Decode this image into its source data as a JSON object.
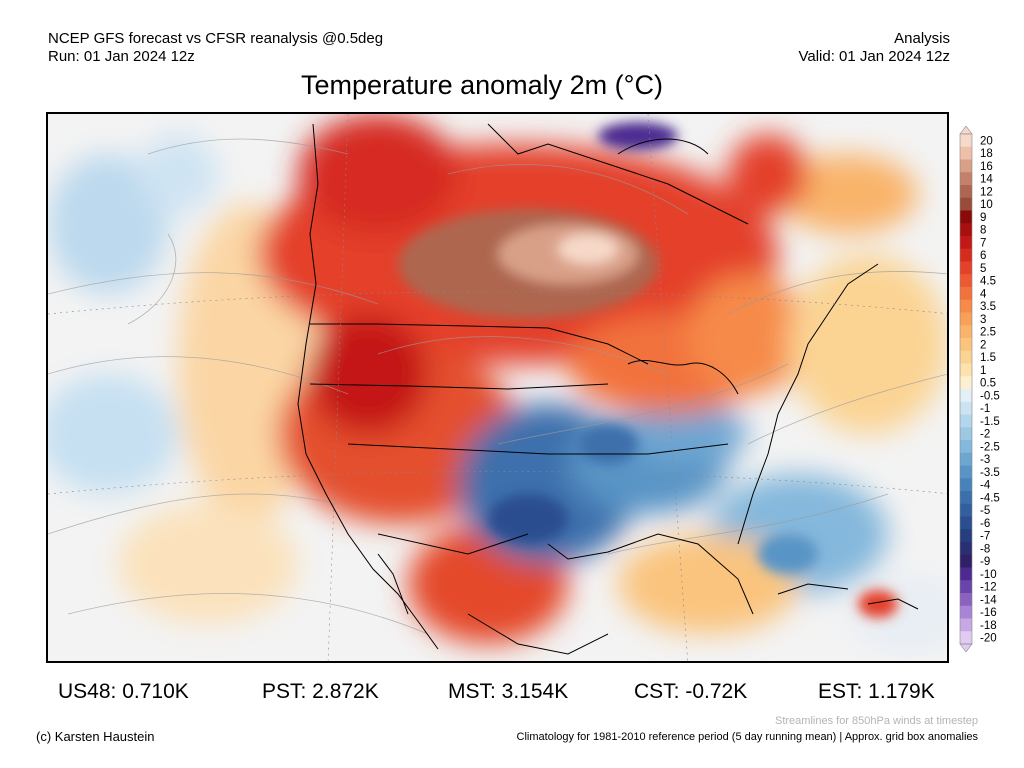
{
  "header": {
    "left_line1": "NCEP GFS forecast vs CFSR reanalysis @0.5deg",
    "left_line2": "Run: 01 Jan 2024 12z",
    "right_line1": "Analysis",
    "right_line2": "Valid: 01 Jan 2024 12z"
  },
  "title": "Temperature anomaly 2m (°C)",
  "colorbar": {
    "labels": [
      "20",
      "18",
      "16",
      "14",
      "12",
      "10",
      "9",
      "8",
      "7",
      "6",
      "5",
      "4.5",
      "4",
      "3.5",
      "3",
      "2.5",
      "2",
      "1.5",
      "1",
      "0.5",
      "-0.5",
      "-1",
      "-1.5",
      "-2",
      "-2.5",
      "-3",
      "-3.5",
      "-4",
      "-4.5",
      "-5",
      "-6",
      "-7",
      "-8",
      "-9",
      "-10",
      "-12",
      "-14",
      "-16",
      "-18",
      "-20"
    ],
    "colors": [
      "#f7d9c9",
      "#eec0a8",
      "#d9a088",
      "#c4806a",
      "#ae6650",
      "#9a4c38",
      "#8a0a0a",
      "#a80f0f",
      "#c41818",
      "#d62c20",
      "#e4402a",
      "#ec5a34",
      "#f2723e",
      "#f68a4a",
      "#f8a058",
      "#f9b46a",
      "#fac47e",
      "#fbd494",
      "#fce2ac",
      "#fdf0d0",
      "#e4f0f8",
      "#cce4f2",
      "#b4d6ec",
      "#9cc8e4",
      "#84b8dc",
      "#6ea6d2",
      "#5894c6",
      "#4882ba",
      "#3c70ac",
      "#32609e",
      "#2a4e90",
      "#263e80",
      "#2a2e72",
      "#302068",
      "#4c2a90",
      "#6a44a8",
      "#8a62c0",
      "#a884d4",
      "#c6a8e4",
      "#e0ccf2"
    ]
  },
  "stats": [
    {
      "label": "US48: 0.710K"
    },
    {
      "label": "PST: 2.872K"
    },
    {
      "label": "MST: 3.154K"
    },
    {
      "label": "CST: -0.72K"
    },
    {
      "label": "EST: 1.179K"
    }
  ],
  "footer": {
    "credit": "(c) Karsten Haustein",
    "streamlines_note": "Streamlines for 850hPa winds at timestep",
    "climatology_note": "Climatology for 1981-2010 reference period (5 day running mean) | Approx. grid box anomalies"
  }
}
